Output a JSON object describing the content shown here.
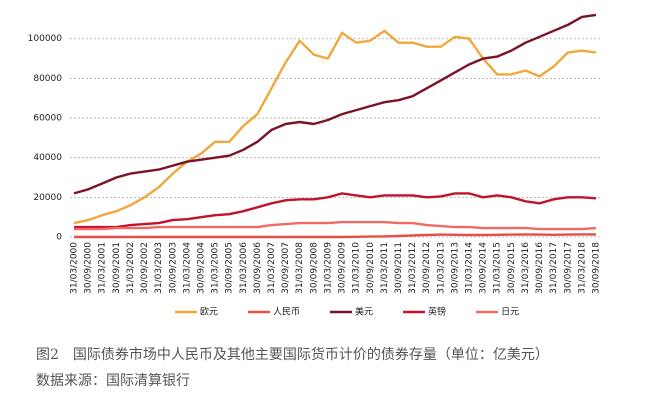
{
  "chart_data": {
    "type": "line",
    "categories": [
      "31/03/2000",
      "30/09/2000",
      "31/03/2001",
      "30/09/2001",
      "31/03/2002",
      "30/09/2002",
      "31/03/2003",
      "30/09/2003",
      "31/03/2004",
      "30/09/2004",
      "31/03/2005",
      "30/09/2005",
      "31/03/2006",
      "30/09/2006",
      "31/03/2007",
      "30/09/2007",
      "31/03/2008",
      "30/09/2008",
      "31/03/2009",
      "30/09/2009",
      "31/03/2010",
      "30/09/2010",
      "31/03/2011",
      "30/09/2011",
      "31/03/2012",
      "30/09/2012",
      "31/03/2013",
      "30/09/2013",
      "31/03/2014",
      "30/09/2014",
      "31/03/2015",
      "30/09/2015",
      "31/03/2016",
      "30/09/2016",
      "31/03/2017",
      "30/09/2017",
      "31/03/2018",
      "30/09/2018"
    ],
    "series": [
      {
        "name": "欧元",
        "color": "#f0a83c",
        "values": [
          7000,
          8500,
          11000,
          13000,
          16000,
          20000,
          25000,
          32000,
          38000,
          42000,
          48000,
          48000,
          56000,
          62000,
          75000,
          88000,
          99000,
          92000,
          90000,
          103000,
          98000,
          99000,
          104000,
          98000,
          98000,
          96000,
          96000,
          101000,
          100000,
          90000,
          82000,
          82000,
          84000,
          81000,
          86000,
          93000,
          94000,
          93000
        ]
      },
      {
        "name": "人民币",
        "color": "#e2504a",
        "values": [
          0,
          0,
          0,
          0,
          0,
          0,
          0,
          0,
          0,
          0,
          0,
          0,
          0,
          0,
          0,
          0,
          0,
          0,
          0,
          0,
          100,
          200,
          300,
          500,
          800,
          1000,
          1200,
          1100,
          1000,
          1000,
          1100,
          1200,
          1300,
          1200,
          1100,
          1200,
          1300,
          1300
        ]
      },
      {
        "name": "美元",
        "color": "#7a1426",
        "values": [
          22000,
          24000,
          27000,
          30000,
          32000,
          33000,
          34000,
          36000,
          38000,
          39000,
          40000,
          41000,
          44000,
          48000,
          54000,
          57000,
          58000,
          57000,
          59000,
          62000,
          64000,
          66000,
          68000,
          69000,
          71000,
          75000,
          79000,
          83000,
          87000,
          90000,
          91000,
          94000,
          98000,
          101000,
          104000,
          107000,
          111000,
          112000
        ]
      },
      {
        "name": "英镑",
        "color": "#c0142c",
        "values": [
          5000,
          5000,
          5000,
          5000,
          6000,
          6500,
          7000,
          8500,
          9000,
          10000,
          11000,
          11500,
          13000,
          15000,
          17000,
          18500,
          19000,
          19000,
          20000,
          22000,
          21000,
          20000,
          21000,
          21000,
          21000,
          20000,
          20500,
          22000,
          22000,
          20000,
          21000,
          20000,
          18000,
          17000,
          19000,
          20000,
          20000,
          19500
        ]
      },
      {
        "name": "日元",
        "color": "#f06a64",
        "values": [
          4000,
          4000,
          4000,
          4500,
          4500,
          4500,
          5000,
          5000,
          5000,
          5000,
          5000,
          5000,
          5000,
          5000,
          6000,
          6500,
          7000,
          7000,
          7000,
          7500,
          7500,
          7500,
          7500,
          7000,
          7000,
          6000,
          5500,
          5000,
          5000,
          4500,
          4500,
          4500,
          4500,
          4000,
          4000,
          4000,
          4000,
          4500
        ]
      }
    ],
    "ylim": [
      0,
      115000
    ],
    "yticks": [
      0,
      20000,
      40000,
      60000,
      80000,
      100000
    ],
    "grid": true
  },
  "caption": {
    "figure": "图2",
    "title": "国际债券市场中人民币及其他主要国际货币计价的债券存量（单位：亿美元）",
    "source": "数据来源：国际清算银行"
  }
}
